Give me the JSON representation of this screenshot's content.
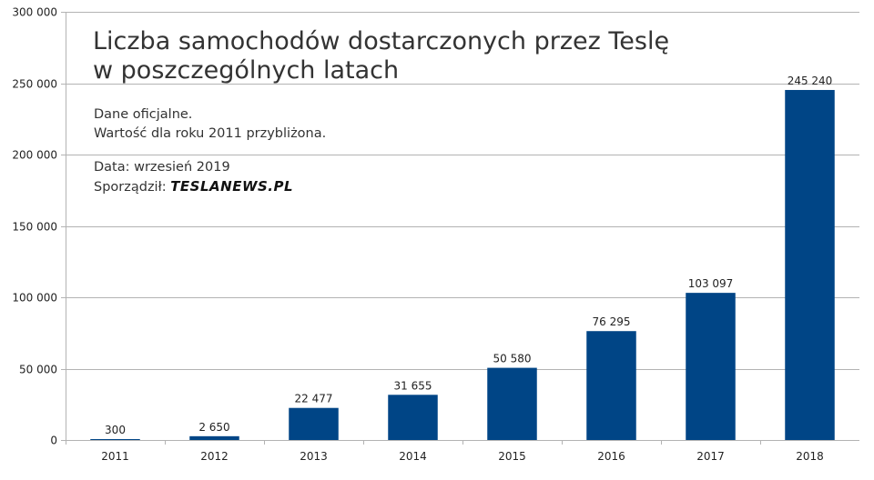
{
  "title_lines": [
    "Liczba samochodów dostarczonych przez Teslę",
    "w poszczególnych latach"
  ],
  "notes": {
    "line1": "Dane oficjalne.",
    "line2": "Wartość dla roku 2011 przybliżona.",
    "line3": "Data: wrzesień 2019",
    "author_label": "Sporządził:",
    "author_brand": "TESLANEWS.PL"
  },
  "colors": {
    "bar": "#004586",
    "grid": "#b3b3b3",
    "axis": "#b3b3b3"
  },
  "chart_data": {
    "type": "bar",
    "title": "Liczba samochodów dostarczonych przez Teslę w poszczególnych latach",
    "categories": [
      "2011",
      "2012",
      "2013",
      "2014",
      "2015",
      "2016",
      "2017",
      "2018"
    ],
    "values": [
      300,
      2650,
      22477,
      31655,
      50580,
      76295,
      103097,
      245240
    ],
    "value_labels": [
      "300",
      "2 650",
      "22 477",
      "31 655",
      "50 580",
      "76 295",
      "103 097",
      "245 240"
    ],
    "ylim": [
      0,
      300000
    ],
    "y_ticks": [
      0,
      50000,
      100000,
      150000,
      200000,
      250000,
      300000
    ],
    "y_tick_labels": [
      "0",
      "50 000",
      "100 000",
      "150 000",
      "200 000",
      "250 000",
      "300 000"
    ],
    "xlabel": "",
    "ylabel": "",
    "grid": true,
    "legend": "none"
  }
}
